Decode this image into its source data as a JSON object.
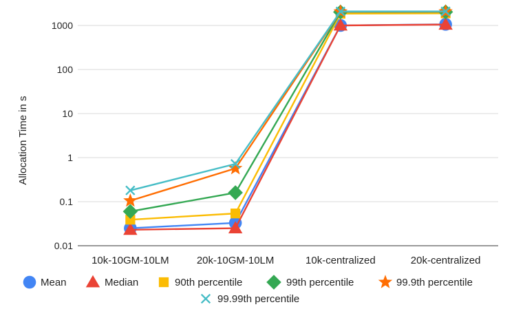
{
  "chart_data": {
    "type": "line",
    "title": "",
    "xlabel": "",
    "ylabel": "Allocation Time in s",
    "yscale": "log",
    "ylim": [
      0.01,
      2000
    ],
    "yticks": [
      0.01,
      0.1,
      1,
      10,
      100,
      1000
    ],
    "ytick_labels": [
      "0.01",
      "0.1",
      "1",
      "10",
      "100",
      "1000"
    ],
    "grid": true,
    "legend_position": "bottom",
    "categories": [
      "10k-10GM-10LM",
      "20k-10GM-10LM",
      "10k-centralized",
      "20k-centralized"
    ],
    "series": [
      {
        "name": "Mean",
        "color": "#4285F4",
        "marker": "circle",
        "values": [
          0.025,
          0.033,
          1000,
          1060
        ]
      },
      {
        "name": "Median",
        "color": "#EA4335",
        "marker": "triangle",
        "values": [
          0.023,
          0.025,
          1000,
          1050
        ]
      },
      {
        "name": "90th percentile",
        "color": "#FBBC04",
        "marker": "square",
        "values": [
          0.039,
          0.054,
          1850,
          1880
        ]
      },
      {
        "name": "99th percentile",
        "color": "#34A853",
        "marker": "diamond",
        "values": [
          0.06,
          0.16,
          2020,
          2030
        ]
      },
      {
        "name": "99.9th percentile",
        "color": "#FF6D01",
        "marker": "star",
        "values": [
          0.105,
          0.57,
          2050,
          2060
        ]
      },
      {
        "name": "99.99th percentile",
        "color": "#46BDC6",
        "marker": "x",
        "values": [
          0.18,
          0.72,
          2080,
          2090
        ]
      }
    ]
  }
}
